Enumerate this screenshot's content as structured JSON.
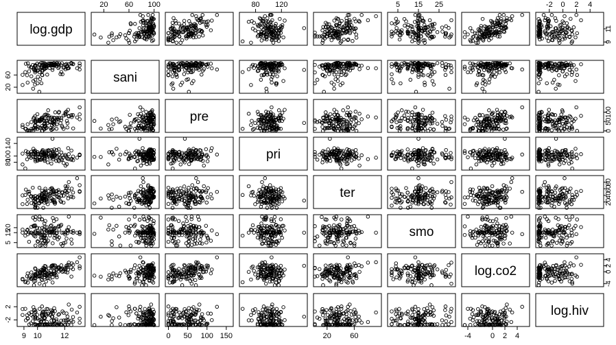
{
  "chart_data": {
    "type": "scatter",
    "variables": [
      "log.gdp",
      "sani",
      "pre",
      "pri",
      "ter",
      "smo",
      "log.co2",
      "log.hiv"
    ],
    "ranges": [
      [
        8.5,
        13.5
      ],
      [
        0,
        108
      ],
      [
        -8,
        168
      ],
      [
        55,
        160
      ],
      [
        0,
        100
      ],
      [
        0,
        33
      ],
      [
        -5,
        6
      ],
      [
        -4,
        6
      ]
    ],
    "ticks": [
      [
        9,
        10,
        12
      ],
      [
        20,
        60,
        100
      ],
      [
        0,
        50,
        100,
        150
      ],
      [
        80,
        120
      ],
      [
        20,
        60
      ],
      [
        5,
        15,
        25
      ],
      [
        -4,
        0,
        2,
        4
      ],
      [
        -2,
        0,
        2,
        4
      ]
    ],
    "right_ticks": {
      "pre": [
        0,
        50,
        100
      ],
      "ter": [
        20,
        40,
        60,
        80
      ],
      "log.co2": [
        -4,
        0,
        2,
        4
      ],
      "log.gdp": [
        9,
        11
      ]
    },
    "left_ticks": {
      "sani": [
        20,
        60
      ],
      "pri": [
        80,
        100,
        140
      ],
      "smo": [
        5,
        15,
        20
      ],
      "log.hiv": [
        -2,
        2
      ]
    },
    "gdp_axis_labels": {
      "bottom": [
        "9",
        "10",
        "12"
      ],
      "right": [
        "9",
        "11"
      ]
    },
    "n_points": 130,
    "seed": 7,
    "grid": false,
    "legend": "none",
    "point_style": "open circle",
    "point_color": "#000000"
  }
}
